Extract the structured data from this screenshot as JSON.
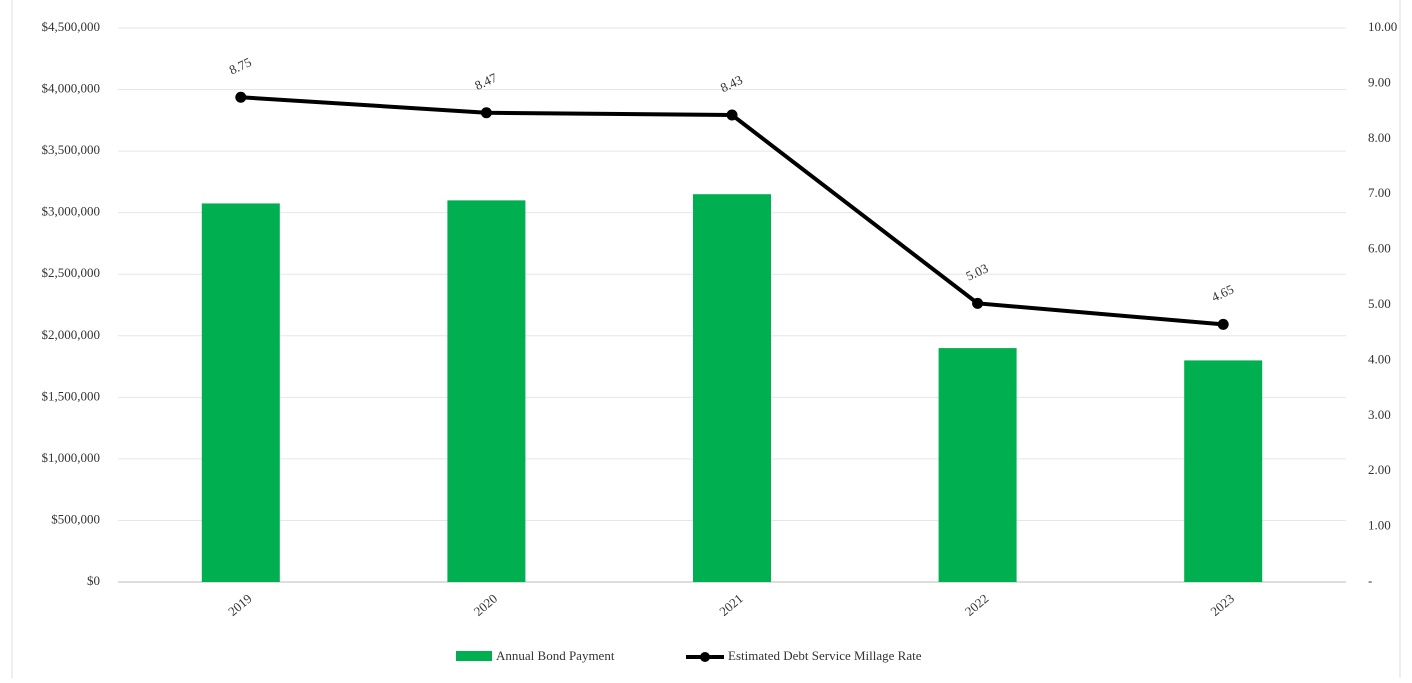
{
  "chart_data": {
    "type": "bar-line",
    "categories": [
      "2019",
      "2020",
      "2021",
      "2022",
      "2023"
    ],
    "series": [
      {
        "name": "Annual Bond Payment",
        "type": "bar",
        "color": "#00b050",
        "values": [
          3075000,
          3100000,
          3150000,
          1900000,
          1800000
        ]
      },
      {
        "name": "Estimated Debt Service Millage Rate",
        "type": "line",
        "axis": "y2",
        "color": "#000000",
        "values": [
          8.75,
          8.47,
          8.43,
          5.03,
          4.65
        ]
      }
    ],
    "ylim": [
      0,
      4500000
    ],
    "yticks": [
      {
        "value": 0,
        "label": "$0"
      },
      {
        "value": 500000,
        "label": "$500,000"
      },
      {
        "value": 1000000,
        "label": "$1,000,000"
      },
      {
        "value": 1500000,
        "label": "$1,500,000"
      },
      {
        "value": 2000000,
        "label": "$2,000,000"
      },
      {
        "value": 2500000,
        "label": "$2,500,000"
      },
      {
        "value": 3000000,
        "label": "$3,000,000"
      },
      {
        "value": 3500000,
        "label": "$3,500,000"
      },
      {
        "value": 4000000,
        "label": "$4,000,000"
      },
      {
        "value": 4500000,
        "label": "$4,500,000"
      }
    ],
    "y2lim": [
      0,
      10
    ],
    "y2ticks": [
      {
        "value": 0,
        "label": "-"
      },
      {
        "value": 1,
        "label": "1.00"
      },
      {
        "value": 2,
        "label": "2.00"
      },
      {
        "value": 3,
        "label": "3.00"
      },
      {
        "value": 4,
        "label": "4.00"
      },
      {
        "value": 5,
        "label": "5.00"
      },
      {
        "value": 6,
        "label": "6.00"
      },
      {
        "value": 7,
        "label": "7.00"
      },
      {
        "value": 8,
        "label": "8.00"
      },
      {
        "value": 9,
        "label": "9.00"
      },
      {
        "value": 10,
        "label": "10.00"
      }
    ],
    "grid": true,
    "legend": "bottom"
  }
}
